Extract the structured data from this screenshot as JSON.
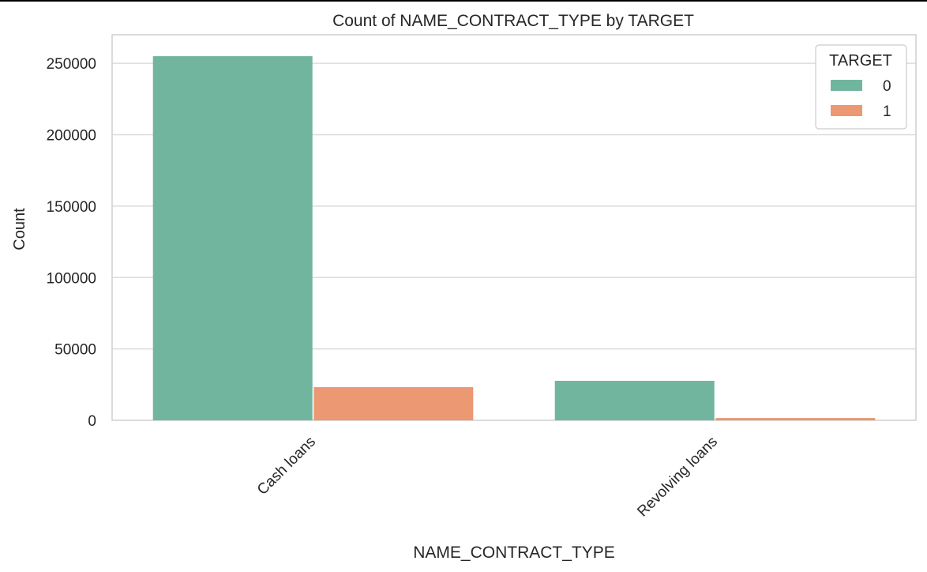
{
  "chart_data": {
    "type": "bar",
    "title": "Count of NAME_CONTRACT_TYPE by TARGET",
    "xlabel": "NAME_CONTRACT_TYPE",
    "ylabel": "Count",
    "categories": [
      "Cash loans",
      "Revolving loans"
    ],
    "series": [
      {
        "name": "0",
        "values": [
          255011,
          27675
        ],
        "color": "#72b59f"
      },
      {
        "name": "1",
        "values": [
          23221,
          1604
        ],
        "color": "#eb9873"
      }
    ],
    "ylim": [
      0,
      270000
    ],
    "yticks": [
      0,
      50000,
      100000,
      150000,
      200000,
      250000
    ],
    "ytick_labels": [
      "0",
      "50000",
      "100000",
      "150000",
      "200000",
      "250000"
    ],
    "xtick_rotation": 45,
    "grid": "horizontal",
    "legend": {
      "title": "TARGET",
      "placement": "top-right"
    }
  }
}
